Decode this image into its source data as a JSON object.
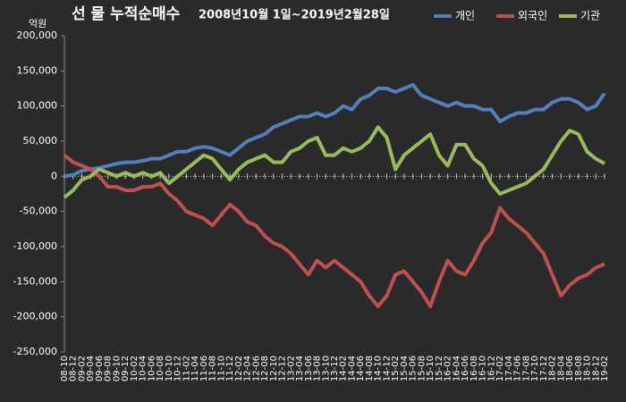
{
  "chart_data": {
    "type": "line",
    "title": "선 물 누적순매수",
    "subtitle": "2008년10월 1일~2019년2월28일",
    "ylabel": "억원",
    "categories": [
      "08-10",
      "08-12",
      "09-02",
      "09-04",
      "09-06",
      "09-08",
      "09-10",
      "09-12",
      "10-02",
      "10-04",
      "10-06",
      "10-08",
      "10-10",
      "10-12",
      "11-02",
      "11-04",
      "11-06",
      "11-08",
      "11-10",
      "11-12",
      "12-02",
      "12-04",
      "12-06",
      "12-08",
      "12-10",
      "12-12",
      "13-02",
      "13-04",
      "13-06",
      "13-08",
      "13-10",
      "13-12",
      "14-02",
      "14-04",
      "14-06",
      "14-08",
      "14-10",
      "14-12",
      "15-02",
      "15-04",
      "15-06",
      "15-08",
      "15-10",
      "15-12",
      "16-02",
      "16-04",
      "16-06",
      "16-08",
      "16-10",
      "16-12",
      "17-02",
      "17-04",
      "17-06",
      "17-08",
      "17-10",
      "17-12",
      "18-02",
      "18-04",
      "18-06",
      "18-08",
      "18-10",
      "18-12",
      "19-02"
    ],
    "series": [
      {
        "name": "개인",
        "color": "#4f81bd",
        "values": [
          0,
          2000,
          8000,
          10000,
          12000,
          15000,
          18000,
          20000,
          20000,
          22000,
          25000,
          25000,
          30000,
          35000,
          35000,
          40000,
          42000,
          40000,
          35000,
          30000,
          40000,
          50000,
          55000,
          60000,
          70000,
          75000,
          80000,
          85000,
          85000,
          90000,
          85000,
          90000,
          100000,
          95000,
          110000,
          115000,
          125000,
          125000,
          120000,
          125000,
          130000,
          115000,
          110000,
          105000,
          100000,
          105000,
          100000,
          100000,
          95000,
          95000,
          78000,
          85000,
          90000,
          90000,
          95000,
          95000,
          105000,
          110000,
          110000,
          105000,
          95000,
          100000,
          118000
        ]
      },
      {
        "name": "외국인",
        "color": "#c0504d",
        "values": [
          30000,
          20000,
          15000,
          10000,
          0,
          -15000,
          -15000,
          -20000,
          -20000,
          -15000,
          -15000,
          -10000,
          -25000,
          -35000,
          -50000,
          -55000,
          -60000,
          -70000,
          -55000,
          -40000,
          -50000,
          -65000,
          -70000,
          -85000,
          -95000,
          -100000,
          -110000,
          -125000,
          -140000,
          -120000,
          -130000,
          -120000,
          -130000,
          -140000,
          -150000,
          -170000,
          -185000,
          -170000,
          -140000,
          -135000,
          -150000,
          -165000,
          -185000,
          -150000,
          -120000,
          -135000,
          -140000,
          -120000,
          -95000,
          -80000,
          -45000,
          -60000,
          -70000,
          -80000,
          -95000,
          -110000,
          -140000,
          -170000,
          -155000,
          -145000,
          -140000,
          -130000,
          -125000
        ]
      },
      {
        "name": "기관",
        "color": "#9bbb59",
        "values": [
          -30000,
          -20000,
          -5000,
          0,
          10000,
          5000,
          0,
          5000,
          0,
          5000,
          0,
          5000,
          -10000,
          0,
          10000,
          20000,
          30000,
          25000,
          10000,
          -5000,
          10000,
          20000,
          25000,
          30000,
          20000,
          20000,
          35000,
          40000,
          50000,
          55000,
          30000,
          30000,
          40000,
          35000,
          40000,
          50000,
          70000,
          55000,
          10000,
          30000,
          40000,
          50000,
          60000,
          30000,
          15000,
          45000,
          45000,
          25000,
          15000,
          -10000,
          -25000,
          -20000,
          -15000,
          -10000,
          0,
          10000,
          30000,
          50000,
          65000,
          60000,
          35000,
          25000,
          18000
        ]
      }
    ],
    "ylim": [
      -250000,
      200000
    ],
    "yticks": [
      {
        "value": 200000,
        "label": "200,000"
      },
      {
        "value": 150000,
        "label": "150,000"
      },
      {
        "value": 100000,
        "label": "100,000"
      },
      {
        "value": 50000,
        "label": "50,000"
      },
      0,
      {
        "value": -50000,
        "label": "-50,000"
      },
      {
        "value": -100000,
        "label": "-100,000"
      },
      {
        "value": -150000,
        "label": "-150,000"
      },
      {
        "value": -200000,
        "label": "-200,000"
      },
      {
        "value": -250000,
        "label": "-250,000"
      }
    ],
    "legend": "top-right"
  }
}
